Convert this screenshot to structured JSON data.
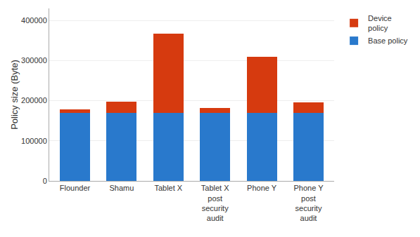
{
  "chart_data": {
    "type": "bar",
    "stacked": true,
    "categories": [
      "Flounder",
      "Shamu",
      "Tablet X",
      "Tablet X\npost\nsecurity\naudit",
      "Phone Y",
      "Phone Y\npost\nsecurity\naudit"
    ],
    "series": [
      {
        "name": "Base policy",
        "color": "#2979cc",
        "values": [
          170000,
          170000,
          170000,
          170000,
          170000,
          170000
        ]
      },
      {
        "name": "Device\npolicy",
        "color": "#d63a0f",
        "values": [
          8000,
          27000,
          197000,
          11000,
          140000,
          25000
        ]
      }
    ],
    "y_label": "Policy size (Byte)",
    "ylim": [
      0,
      430000
    ],
    "yticks": [
      0,
      100000,
      200000,
      300000,
      400000
    ],
    "grid": true,
    "legend": "upper right"
  }
}
